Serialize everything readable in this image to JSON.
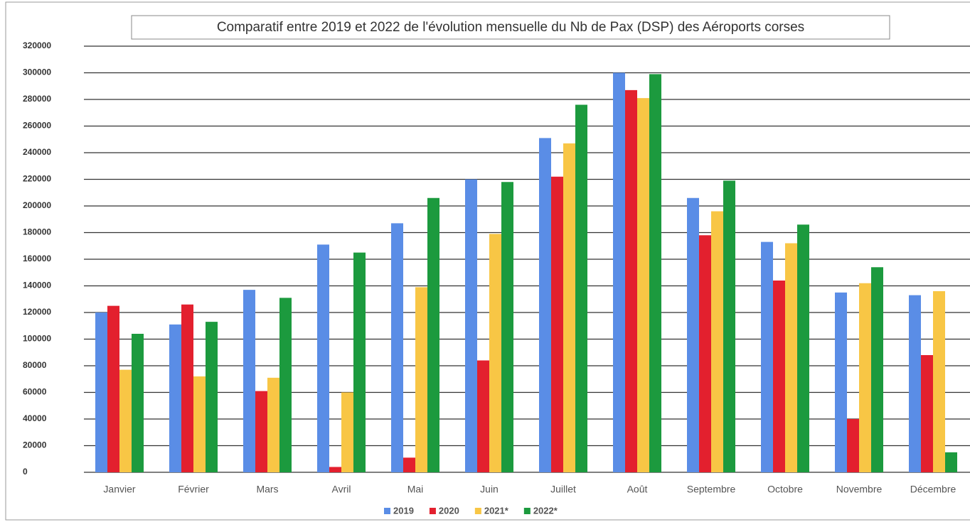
{
  "chart_data": {
    "type": "bar",
    "title": "Comparatif entre 2019 et 2022 de l'évolution mensuelle du Nb de Pax (DSP) des Aéroports corses",
    "categories": [
      "Janvier",
      "Février",
      "Mars",
      "Avril",
      "Mai",
      "Juin",
      "Juillet",
      "Août",
      "Septembre",
      "Octobre",
      "Novembre",
      "Décembre"
    ],
    "series": [
      {
        "name": "2019",
        "color": "#5a8de6",
        "values": [
          120000,
          111000,
          137000,
          171000,
          187000,
          220000,
          251000,
          300000,
          206000,
          173000,
          135000,
          133000
        ]
      },
      {
        "name": "2020",
        "color": "#e3202e",
        "values": [
          125000,
          126000,
          61000,
          4000,
          11000,
          84000,
          222000,
          287000,
          178000,
          144000,
          40000,
          88000
        ]
      },
      {
        "name": "2021*",
        "color": "#f8c645",
        "values": [
          77000,
          72000,
          71000,
          60000,
          139000,
          179000,
          247000,
          281000,
          196000,
          172000,
          142000,
          136000
        ]
      },
      {
        "name": "2022*",
        "color": "#1c9a3e",
        "values": [
          104000,
          113000,
          131000,
          165000,
          206000,
          218000,
          276000,
          299000,
          219000,
          186000,
          154000,
          15000
        ]
      }
    ],
    "ylim": [
      0,
      320000
    ],
    "yticks": [
      0,
      20000,
      40000,
      60000,
      80000,
      100000,
      120000,
      140000,
      160000,
      180000,
      200000,
      220000,
      240000,
      260000,
      280000,
      300000,
      320000
    ],
    "grid": true,
    "legend": "bottom"
  }
}
